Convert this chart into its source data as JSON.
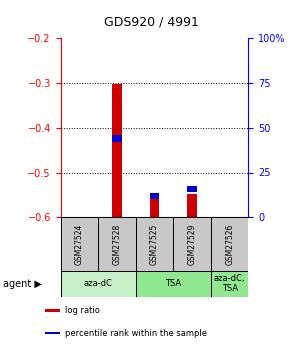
{
  "title": "GDS920 / 4991",
  "samples": [
    "GSM27524",
    "GSM27528",
    "GSM27525",
    "GSM27529",
    "GSM27526"
  ],
  "log_ratios": [
    0.0,
    -0.302,
    -0.558,
    -0.548,
    0.0
  ],
  "percentile_ranks": [
    0.0,
    44.0,
    12.0,
    16.0,
    0.0
  ],
  "ylim_left": [
    -0.6,
    -0.2
  ],
  "ylim_right": [
    0,
    100
  ],
  "yticks_left": [
    -0.6,
    -0.5,
    -0.4,
    -0.3,
    -0.2
  ],
  "yticks_right": [
    0,
    25,
    50,
    75,
    100
  ],
  "ytick_labels_right": [
    "0",
    "25",
    "50",
    "75",
    "100%"
  ],
  "agents": [
    {
      "label": "aza-dC",
      "span": [
        0,
        2
      ],
      "color": "#c8f0c8"
    },
    {
      "label": "TSA",
      "span": [
        2,
        4
      ],
      "color": "#90e890"
    },
    {
      "label": "aza-dC,\nTSA",
      "span": [
        4,
        5
      ],
      "color": "#90e890"
    }
  ],
  "bar_width": 0.25,
  "red_color": "#cc0000",
  "blue_color": "#0000cc",
  "bg_color": "#ffffff",
  "sample_box_color": "#c8c8c8",
  "legend_items": [
    {
      "color": "#cc0000",
      "label": "log ratio"
    },
    {
      "color": "#0000cc",
      "label": "percentile rank within the sample"
    }
  ]
}
